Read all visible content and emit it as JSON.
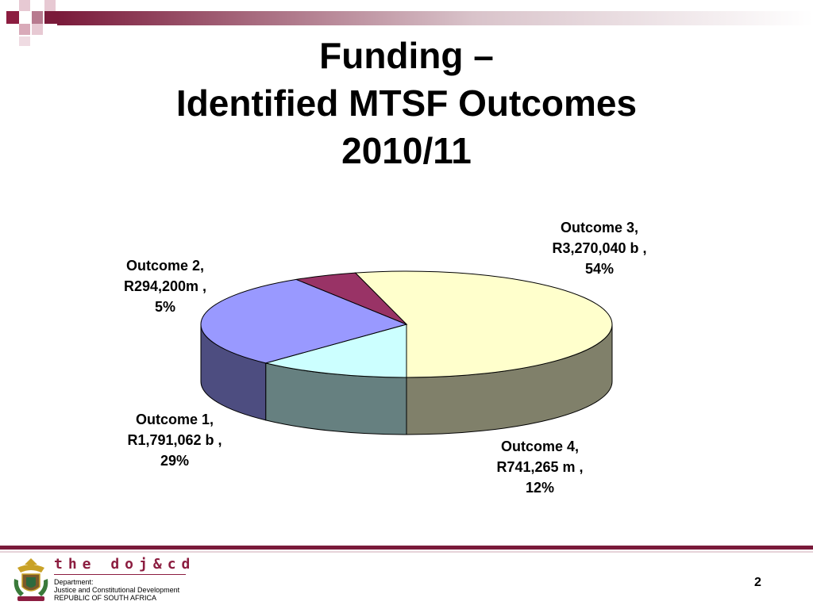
{
  "title": {
    "line1": "Funding –",
    "line2": "Identified MTSF Outcomes",
    "line3": "2010/11"
  },
  "chart_data": {
    "type": "pie",
    "style": "3d-exploded-none",
    "title": "",
    "slices": [
      {
        "name": "Outcome 3",
        "amount": "R3,270,040 b",
        "percent": 54,
        "color": "#ffffcc",
        "side_color": "#80806a"
      },
      {
        "name": "Outcome 4",
        "amount": "R741,265 m",
        "percent": 12,
        "color": "#ccffff",
        "side_color": "#668080"
      },
      {
        "name": "Outcome 1",
        "amount": "R1,791,062 b",
        "percent": 29,
        "color": "#9999ff",
        "side_color": "#4d4d80"
      },
      {
        "name": "Outcome 2",
        "amount": "R294,200m",
        "percent": 5,
        "color": "#993366",
        "side_color": "#4d1a33"
      }
    ],
    "labels": [
      {
        "line1": "Outcome 3,",
        "line2": "R3,270,040 b ,",
        "line3": "54%"
      },
      {
        "line1": "Outcome 4,",
        "line2": "R741,265 m ,",
        "line3": "12%"
      },
      {
        "line1": "Outcome 1,",
        "line2": "R1,791,062 b ,",
        "line3": "29%"
      },
      {
        "line1": "Outcome 2,",
        "line2": "R294,200m ,",
        "line3": "5%"
      }
    ]
  },
  "footer": {
    "brand": "the doj&cd",
    "dept_line1": "Department:",
    "dept_line2": "Justice and Constitutional Development",
    "dept_line3": "REPUBLIC OF SOUTH AFRICA",
    "page_number": "2"
  },
  "colors": {
    "accent": "#7a1a3a",
    "brand": "#8c1d40"
  }
}
